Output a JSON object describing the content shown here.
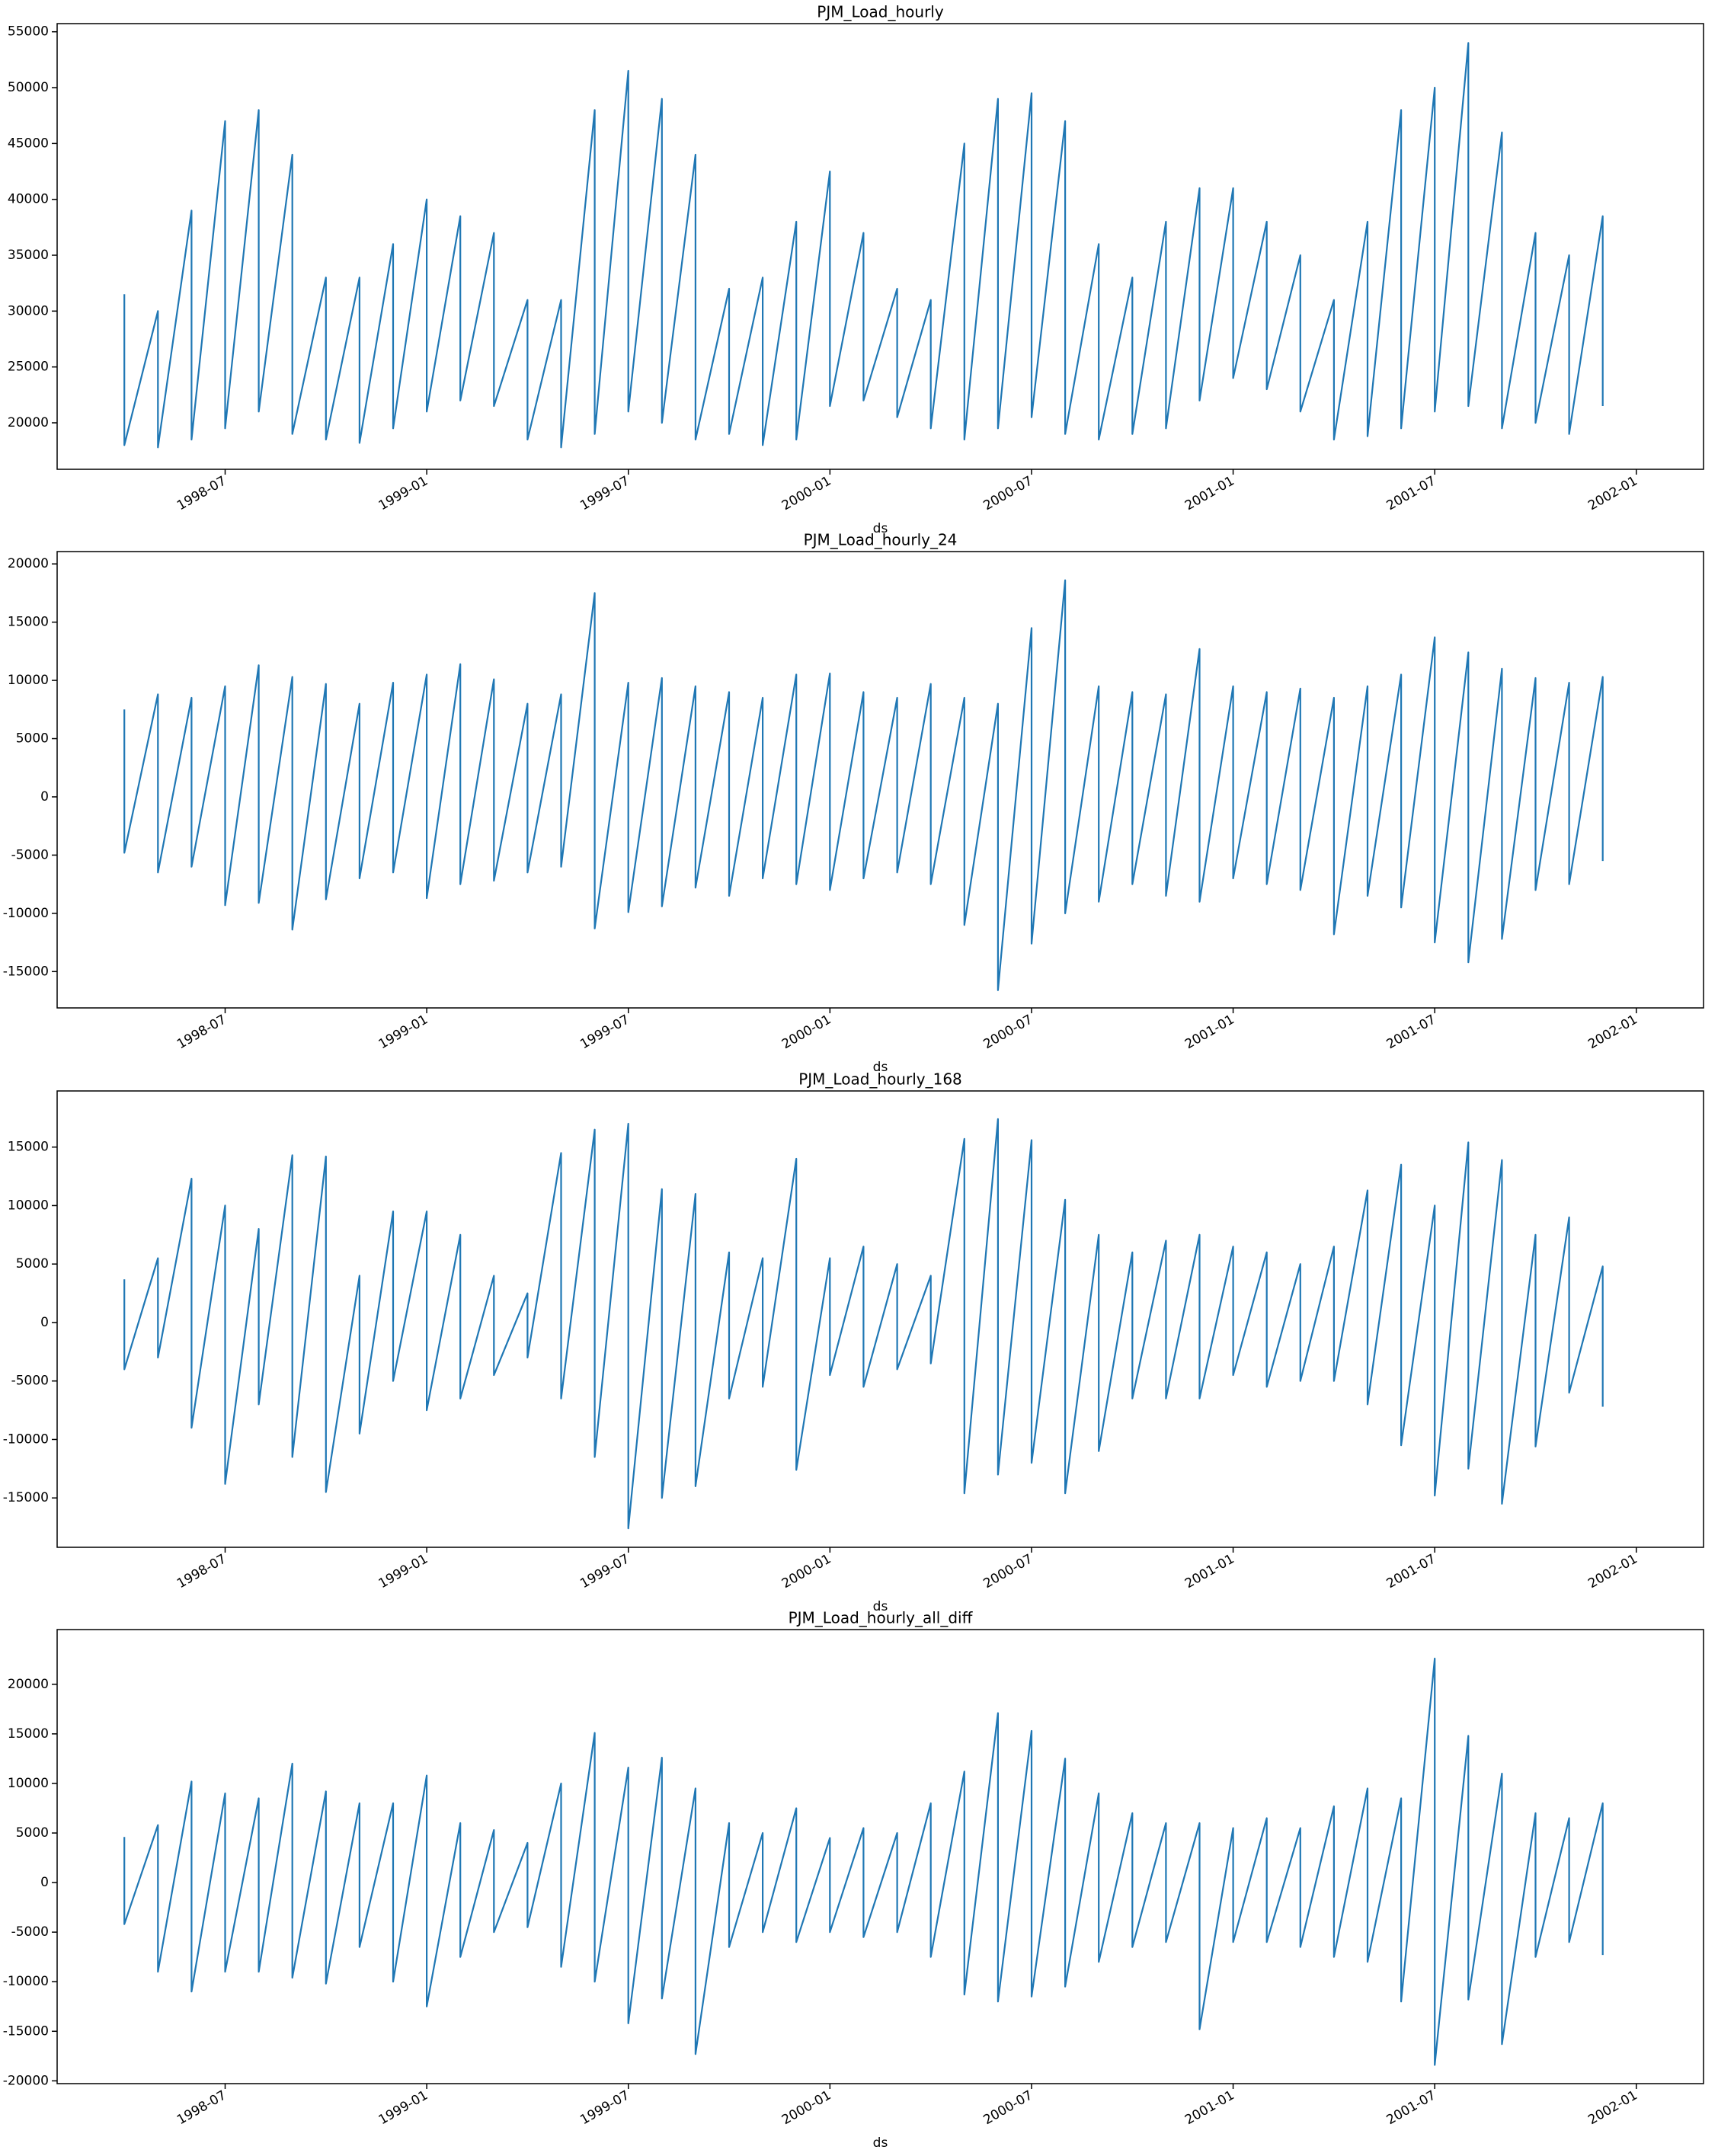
{
  "chart_data": [
    {
      "type": "line",
      "title": "PJM_Load_hourly",
      "xlabel": "ds",
      "x": [
        "1998-04",
        "1998-04",
        "1998-05",
        "1998-05",
        "1998-06",
        "1998-06",
        "1998-07",
        "1998-07",
        "1998-08",
        "1998-08",
        "1998-09",
        "1998-09",
        "1998-10",
        "1998-10",
        "1998-11",
        "1998-11",
        "1998-12",
        "1998-12",
        "1999-01",
        "1999-01",
        "1999-02",
        "1999-02",
        "1999-03",
        "1999-03",
        "1999-04",
        "1999-04",
        "1999-05",
        "1999-05",
        "1999-06",
        "1999-06",
        "1999-07",
        "1999-07",
        "1999-08",
        "1999-08",
        "1999-09",
        "1999-09",
        "1999-10",
        "1999-10",
        "1999-11",
        "1999-11",
        "1999-12",
        "1999-12",
        "2000-01",
        "2000-01",
        "2000-02",
        "2000-02",
        "2000-03",
        "2000-03",
        "2000-04",
        "2000-04",
        "2000-05",
        "2000-05",
        "2000-06",
        "2000-06",
        "2000-07",
        "2000-07",
        "2000-08",
        "2000-08",
        "2000-09",
        "2000-09",
        "2000-10",
        "2000-10",
        "2000-11",
        "2000-11",
        "2000-12",
        "2000-12",
        "2001-01",
        "2001-01",
        "2001-02",
        "2001-02",
        "2001-03",
        "2001-03",
        "2001-04",
        "2001-04",
        "2001-05",
        "2001-05",
        "2001-06",
        "2001-06",
        "2001-07",
        "2001-07",
        "2001-08",
        "2001-08",
        "2001-09",
        "2001-09",
        "2001-10",
        "2001-10",
        "2001-11",
        "2001-11",
        "2001-12",
        "2001-12"
      ],
      "series": [
        {
          "color": "#1f77b4",
          "values": [
            31500,
            18000,
            30000,
            17800,
            39000,
            18500,
            47000,
            19500,
            48000,
            21000,
            44000,
            19000,
            33000,
            18500,
            33000,
            18200,
            36000,
            19500,
            40000,
            21000,
            38500,
            22000,
            37000,
            21500,
            31000,
            18500,
            31000,
            17800,
            48000,
            19000,
            51500,
            21000,
            49000,
            20000,
            44000,
            18500,
            32000,
            19000,
            33000,
            18000,
            38000,
            18500,
            42500,
            21500,
            37000,
            22000,
            32000,
            20500,
            31000,
            19500,
            45000,
            18500,
            49000,
            19500,
            49500,
            20500,
            47000,
            19000,
            36000,
            18500,
            33000,
            19000,
            38000,
            19500,
            41000,
            22000,
            41000,
            24000,
            38000,
            23000,
            35000,
            21000,
            31000,
            18500,
            38000,
            18800,
            48000,
            19500,
            50000,
            21000,
            54000,
            21500,
            46000,
            19500,
            37000,
            20000,
            35000,
            19000,
            38500,
            21500
          ]
        }
      ],
      "xlim": [
        "1998-02",
        "2002-03"
      ],
      "xticks": [
        "1998-07",
        "1999-01",
        "1999-07",
        "2000-01",
        "2000-07",
        "2001-01",
        "2001-07",
        "2002-01"
      ],
      "ylim": [
        15840,
        55730
      ],
      "yticks": [
        20000,
        25000,
        30000,
        35000,
        40000,
        45000,
        50000,
        55000
      ]
    },
    {
      "type": "line",
      "title": "PJM_Load_hourly_24",
      "xlabel": "ds",
      "x": [
        "1998-04",
        "1998-04",
        "1998-05",
        "1998-05",
        "1998-06",
        "1998-06",
        "1998-07",
        "1998-07",
        "1998-08",
        "1998-08",
        "1998-09",
        "1998-09",
        "1998-10",
        "1998-10",
        "1998-11",
        "1998-11",
        "1998-12",
        "1998-12",
        "1999-01",
        "1999-01",
        "1999-02",
        "1999-02",
        "1999-03",
        "1999-03",
        "1999-04",
        "1999-04",
        "1999-05",
        "1999-05",
        "1999-06",
        "1999-06",
        "1999-07",
        "1999-07",
        "1999-08",
        "1999-08",
        "1999-09",
        "1999-09",
        "1999-10",
        "1999-10",
        "1999-11",
        "1999-11",
        "1999-12",
        "1999-12",
        "2000-01",
        "2000-01",
        "2000-02",
        "2000-02",
        "2000-03",
        "2000-03",
        "2000-04",
        "2000-04",
        "2000-05",
        "2000-05",
        "2000-06",
        "2000-06",
        "2000-07",
        "2000-07",
        "2000-08",
        "2000-08",
        "2000-09",
        "2000-09",
        "2000-10",
        "2000-10",
        "2000-11",
        "2000-11",
        "2000-12",
        "2000-12",
        "2001-01",
        "2001-01",
        "2001-02",
        "2001-02",
        "2001-03",
        "2001-03",
        "2001-04",
        "2001-04",
        "2001-05",
        "2001-05",
        "2001-06",
        "2001-06",
        "2001-07",
        "2001-07",
        "2001-08",
        "2001-08",
        "2001-09",
        "2001-09",
        "2001-10",
        "2001-10",
        "2001-11",
        "2001-11",
        "2001-12",
        "2001-12"
      ],
      "series": [
        {
          "color": "#1f77b4",
          "values": [
            7500,
            -4800,
            8800,
            -6500,
            8500,
            -6000,
            9500,
            -9300,
            11300,
            -9100,
            10300,
            -11400,
            9700,
            -8800,
            8000,
            -7000,
            9800,
            -6500,
            10500,
            -8700,
            11400,
            -7500,
            10100,
            -7200,
            8000,
            -6500,
            8800,
            -6000,
            17500,
            -11300,
            9800,
            -9900,
            10200,
            -9400,
            9500,
            -7800,
            9000,
            -8500,
            8500,
            -7000,
            10500,
            -7500,
            10600,
            -8000,
            9000,
            -7000,
            8500,
            -6500,
            9700,
            -7500,
            8500,
            -11000,
            8000,
            -16600,
            14500,
            -12600,
            18600,
            -10000,
            9500,
            -9000,
            9000,
            -7500,
            8800,
            -8500,
            12700,
            -9000,
            9500,
            -7000,
            9000,
            -7500,
            9300,
            -8000,
            8500,
            -11800,
            9500,
            -8500,
            10500,
            -9500,
            13700,
            -12500,
            12400,
            -14200,
            11000,
            -12200,
            10200,
            -8000,
            9800,
            -7500,
            10300,
            -5500
          ]
        }
      ],
      "xlim": [
        "1998-02",
        "2002-03"
      ],
      "xticks": [
        "1998-07",
        "1999-01",
        "1999-07",
        "2000-01",
        "2000-07",
        "2001-01",
        "2001-07",
        "2002-01"
      ],
      "ylim": [
        -18120,
        21060
      ],
      "yticks": [
        -15000,
        -10000,
        -5000,
        0,
        5000,
        10000,
        15000,
        20000
      ]
    },
    {
      "type": "line",
      "title": "PJM_Load_hourly_168",
      "xlabel": "ds",
      "x": [
        "1998-04",
        "1998-04",
        "1998-05",
        "1998-05",
        "1998-06",
        "1998-06",
        "1998-07",
        "1998-07",
        "1998-08",
        "1998-08",
        "1998-09",
        "1998-09",
        "1998-10",
        "1998-10",
        "1998-11",
        "1998-11",
        "1998-12",
        "1998-12",
        "1999-01",
        "1999-01",
        "1999-02",
        "1999-02",
        "1999-03",
        "1999-03",
        "1999-04",
        "1999-04",
        "1999-05",
        "1999-05",
        "1999-06",
        "1999-06",
        "1999-07",
        "1999-07",
        "1999-08",
        "1999-08",
        "1999-09",
        "1999-09",
        "1999-10",
        "1999-10",
        "1999-11",
        "1999-11",
        "1999-12",
        "1999-12",
        "2000-01",
        "2000-01",
        "2000-02",
        "2000-02",
        "2000-03",
        "2000-03",
        "2000-04",
        "2000-04",
        "2000-05",
        "2000-05",
        "2000-06",
        "2000-06",
        "2000-07",
        "2000-07",
        "2000-08",
        "2000-08",
        "2000-09",
        "2000-09",
        "2000-10",
        "2000-10",
        "2000-11",
        "2000-11",
        "2000-12",
        "2000-12",
        "2001-01",
        "2001-01",
        "2001-02",
        "2001-02",
        "2001-03",
        "2001-03",
        "2001-04",
        "2001-04",
        "2001-05",
        "2001-05",
        "2001-06",
        "2001-06",
        "2001-07",
        "2001-07",
        "2001-08",
        "2001-08",
        "2001-09",
        "2001-09",
        "2001-10",
        "2001-10",
        "2001-11",
        "2001-11",
        "2001-12",
        "2001-12"
      ],
      "series": [
        {
          "color": "#1f77b4",
          "values": [
            3700,
            -4000,
            5500,
            -3000,
            12300,
            -9000,
            10000,
            -13800,
            8000,
            -7000,
            14300,
            -11500,
            14200,
            -14500,
            4000,
            -9500,
            9500,
            -5000,
            9500,
            -7500,
            7500,
            -6500,
            4000,
            -4500,
            2500,
            -3000,
            14500,
            -6500,
            16500,
            -11500,
            17000,
            -17600,
            11400,
            -15000,
            11000,
            -14000,
            6000,
            -6500,
            5500,
            -5500,
            14000,
            -12600,
            5500,
            -4500,
            6500,
            -5500,
            5000,
            -4000,
            4000,
            -3500,
            15700,
            -14600,
            17400,
            -13000,
            15600,
            -12000,
            10500,
            -14600,
            7500,
            -11000,
            6000,
            -6500,
            7000,
            -6500,
            7500,
            -6500,
            6500,
            -4500,
            6000,
            -5500,
            5000,
            -5000,
            6500,
            -5000,
            11300,
            -7000,
            13500,
            -10500,
            10000,
            -14800,
            15400,
            -12500,
            13900,
            -15500,
            7500,
            -10600,
            9000,
            -6000,
            4800,
            -7200
          ]
        }
      ],
      "xlim": [
        "1998-02",
        "2002-03"
      ],
      "xticks": [
        "1998-07",
        "1999-01",
        "1999-07",
        "2000-01",
        "2000-07",
        "2001-01",
        "2001-07",
        "2002-01"
      ],
      "ylim": [
        -19220,
        19800
      ],
      "yticks": [
        -15000,
        -10000,
        -5000,
        0,
        5000,
        10000,
        15000
      ]
    },
    {
      "type": "line",
      "title": "PJM_Load_hourly_all_diff",
      "xlabel": "ds",
      "x": [
        "1998-04",
        "1998-04",
        "1998-05",
        "1998-05",
        "1998-06",
        "1998-06",
        "1998-07",
        "1998-07",
        "1998-08",
        "1998-08",
        "1998-09",
        "1998-09",
        "1998-10",
        "1998-10",
        "1998-11",
        "1998-11",
        "1998-12",
        "1998-12",
        "1999-01",
        "1999-01",
        "1999-02",
        "1999-02",
        "1999-03",
        "1999-03",
        "1999-04",
        "1999-04",
        "1999-05",
        "1999-05",
        "1999-06",
        "1999-06",
        "1999-07",
        "1999-07",
        "1999-08",
        "1999-08",
        "1999-09",
        "1999-09",
        "1999-10",
        "1999-10",
        "1999-11",
        "1999-11",
        "1999-12",
        "1999-12",
        "2000-01",
        "2000-01",
        "2000-02",
        "2000-02",
        "2000-03",
        "2000-03",
        "2000-04",
        "2000-04",
        "2000-05",
        "2000-05",
        "2000-06",
        "2000-06",
        "2000-07",
        "2000-07",
        "2000-08",
        "2000-08",
        "2000-09",
        "2000-09",
        "2000-10",
        "2000-10",
        "2000-11",
        "2000-11",
        "2000-12",
        "2000-12",
        "2001-01",
        "2001-01",
        "2001-02",
        "2001-02",
        "2001-03",
        "2001-03",
        "2001-04",
        "2001-04",
        "2001-05",
        "2001-05",
        "2001-06",
        "2001-06",
        "2001-07",
        "2001-07",
        "2001-08",
        "2001-08",
        "2001-09",
        "2001-09",
        "2001-10",
        "2001-10",
        "2001-11",
        "2001-11",
        "2001-12",
        "2001-12"
      ],
      "series": [
        {
          "color": "#1f77b4",
          "values": [
            4600,
            -4200,
            5800,
            -9000,
            10200,
            -11000,
            9000,
            -9000,
            8500,
            -9000,
            12000,
            -9600,
            9200,
            -10200,
            8000,
            -6500,
            8000,
            -10000,
            10800,
            -12500,
            6000,
            -7500,
            5300,
            -5000,
            4000,
            -4500,
            10000,
            -8500,
            15100,
            -10000,
            11600,
            -14200,
            12600,
            -11700,
            9500,
            -17300,
            6000,
            -6500,
            5000,
            -5000,
            7500,
            -6000,
            4500,
            -5000,
            5500,
            -5500,
            5000,
            -5000,
            8000,
            -7500,
            11200,
            -11300,
            17100,
            -12000,
            15300,
            -11500,
            12500,
            -10500,
            9000,
            -8000,
            7000,
            -6500,
            6000,
            -6000,
            6000,
            -14800,
            5500,
            -6000,
            6500,
            -6000,
            5500,
            -6500,
            7700,
            -7500,
            9500,
            -8000,
            8500,
            -12000,
            22600,
            -18400,
            14800,
            -11800,
            11000,
            -16300,
            7000,
            -7500,
            6500,
            -6000,
            8000,
            -7300
          ]
        }
      ],
      "xlim": [
        "1998-02",
        "2002-03"
      ],
      "xticks": [
        "1998-07",
        "1999-01",
        "1999-07",
        "2000-01",
        "2000-07",
        "2001-01",
        "2001-07",
        "2002-01"
      ],
      "ylim": [
        -20280,
        25520
      ],
      "yticks": [
        -20000,
        -15000,
        -10000,
        -5000,
        0,
        5000,
        10000,
        15000,
        20000
      ]
    }
  ]
}
